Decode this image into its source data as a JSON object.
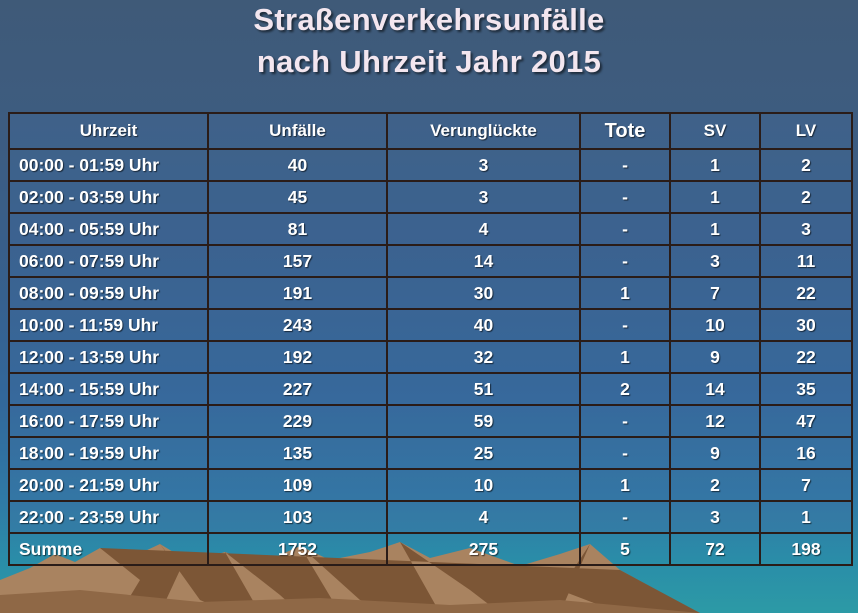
{
  "title": {
    "line1": "Straßenverkehrsunfälle",
    "line2": "nach Uhrzeit Jahr 2015"
  },
  "table": {
    "headers": [
      "Uhrzeit",
      "Unfälle",
      "Verunglückte",
      "Tote",
      "SV",
      "LV"
    ],
    "rows": [
      [
        "00:00 - 01:59 Uhr",
        "40",
        "3",
        "-",
        "1",
        "2"
      ],
      [
        "02:00 - 03:59 Uhr",
        "45",
        "3",
        "-",
        "1",
        "2"
      ],
      [
        "04:00 - 05:59 Uhr",
        "81",
        "4",
        "-",
        "1",
        "3"
      ],
      [
        "06:00 - 07:59 Uhr",
        "157",
        "14",
        "-",
        "3",
        "11"
      ],
      [
        "08:00 - 09:59 Uhr",
        "191",
        "30",
        "1",
        "7",
        "22"
      ],
      [
        "10:00 - 11:59 Uhr",
        "243",
        "40",
        "-",
        "10",
        "30"
      ],
      [
        "12:00 - 13:59 Uhr",
        "192",
        "32",
        "1",
        "9",
        "22"
      ],
      [
        "14:00 - 15:59 Uhr",
        "227",
        "51",
        "2",
        "14",
        "35"
      ],
      [
        "16:00 - 17:59 Uhr",
        "229",
        "59",
        "-",
        "12",
        "47"
      ],
      [
        "18:00 - 19:59 Uhr",
        "135",
        "25",
        "-",
        "9",
        "16"
      ],
      [
        "20:00 - 21:59 Uhr",
        "109",
        "10",
        "1",
        "2",
        "7"
      ],
      [
        "22:00 - 23:59 Uhr",
        "103",
        "4",
        "-",
        "3",
        "1"
      ]
    ],
    "total": [
      "Summe",
      "1752",
      "275",
      "5",
      "72",
      "198"
    ]
  },
  "colors": {
    "title_text": "#f3e6ef",
    "grid_line": "#2a1c18",
    "background_top": "#3f5a78",
    "background_bottom": "#2c9aa6",
    "mountain": "#a27c5a"
  }
}
